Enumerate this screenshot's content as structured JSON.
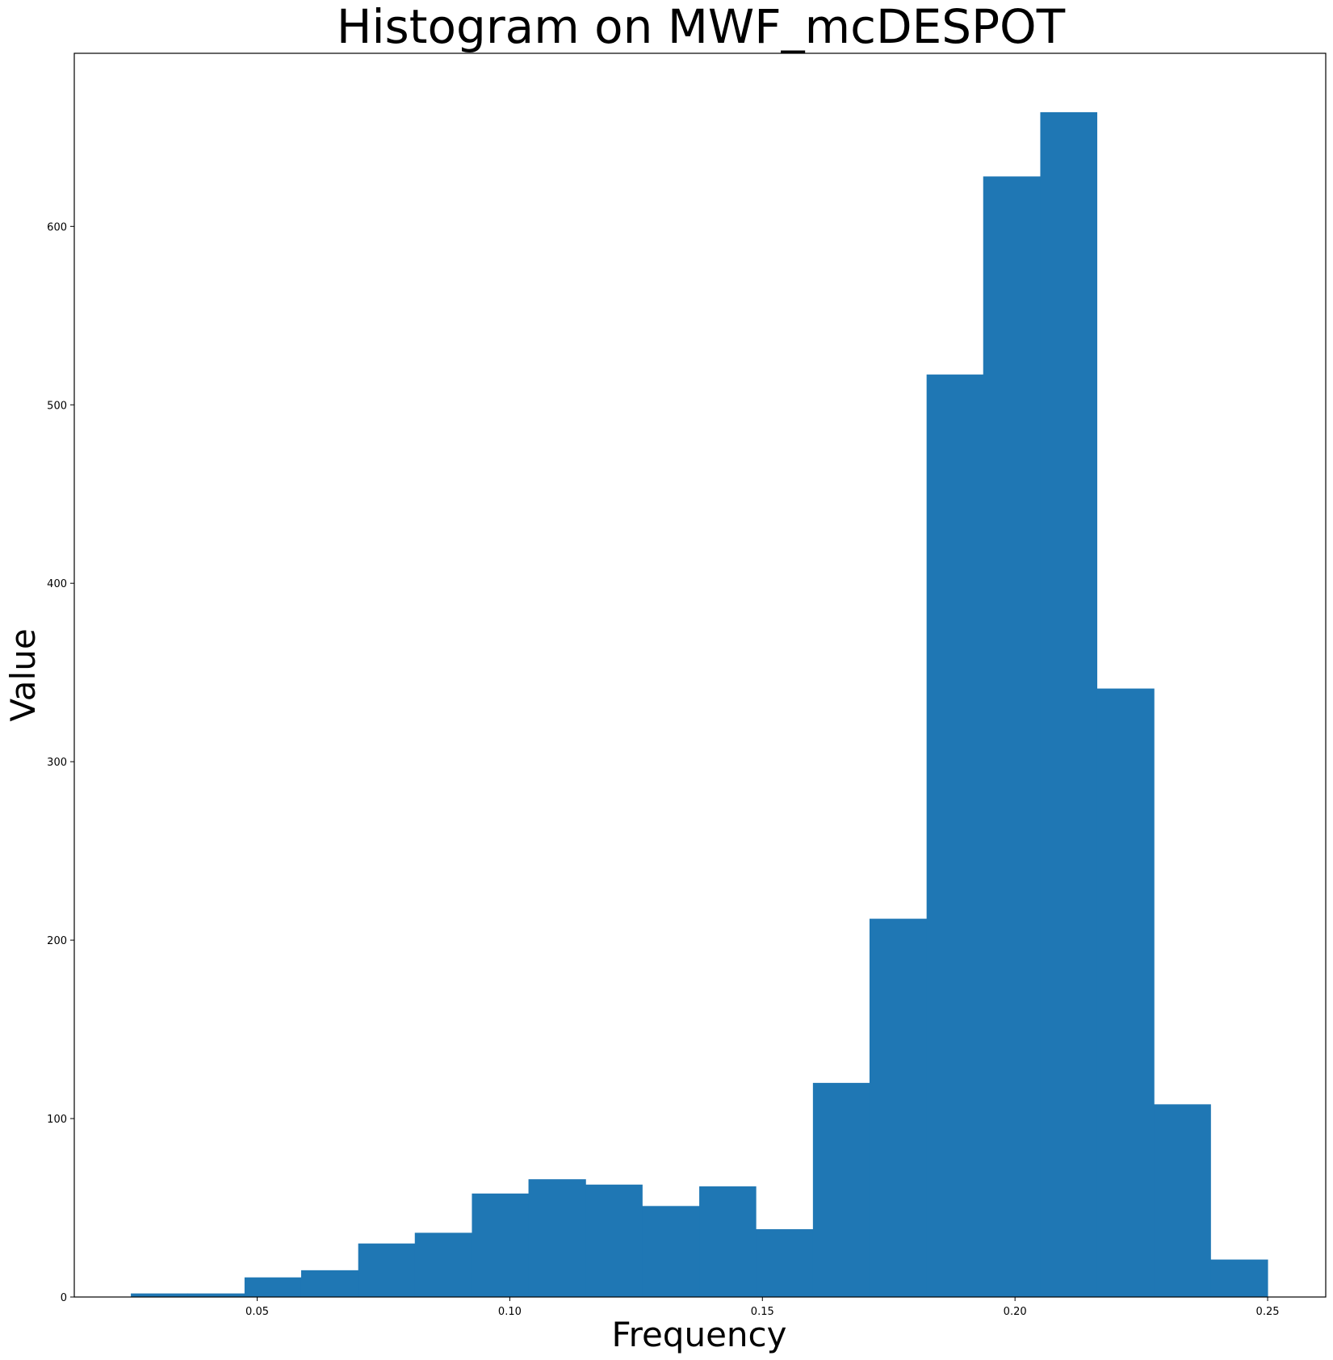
{
  "chart_data": {
    "type": "bar",
    "title": "Histogram on MWF_mcDESPOT",
    "xlabel": "Frequency",
    "ylabel": "Value",
    "xlim": [
      0.0138,
      0.2615
    ],
    "ylim": [
      0,
      697
    ],
    "xticks": [
      "0.05",
      "0.10",
      "0.15",
      "0.20",
      "0.25"
    ],
    "yticks": [
      "0",
      "100",
      "200",
      "300",
      "400",
      "500",
      "600"
    ],
    "grid": false,
    "bar_color": "#1f77b4",
    "bins": [
      {
        "x0": 0.025,
        "x1": 0.0362,
        "value": 2
      },
      {
        "x0": 0.0362,
        "x1": 0.0475,
        "value": 2
      },
      {
        "x0": 0.0475,
        "x1": 0.0587,
        "value": 11
      },
      {
        "x0": 0.0587,
        "x1": 0.07,
        "value": 15
      },
      {
        "x0": 0.07,
        "x1": 0.0812,
        "value": 30
      },
      {
        "x0": 0.0812,
        "x1": 0.0925,
        "value": 36
      },
      {
        "x0": 0.0925,
        "x1": 0.1037,
        "value": 58
      },
      {
        "x0": 0.1037,
        "x1": 0.115,
        "value": 66
      },
      {
        "x0": 0.115,
        "x1": 0.1262,
        "value": 63
      },
      {
        "x0": 0.1262,
        "x1": 0.1375,
        "value": 51
      },
      {
        "x0": 0.1375,
        "x1": 0.1487,
        "value": 62
      },
      {
        "x0": 0.1487,
        "x1": 0.16,
        "value": 38
      },
      {
        "x0": 0.16,
        "x1": 0.1712,
        "value": 120
      },
      {
        "x0": 0.1712,
        "x1": 0.1825,
        "value": 212
      },
      {
        "x0": 0.1825,
        "x1": 0.1937,
        "value": 517
      },
      {
        "x0": 0.1937,
        "x1": 0.205,
        "value": 628
      },
      {
        "x0": 0.205,
        "x1": 0.2162,
        "value": 664
      },
      {
        "x0": 0.2162,
        "x1": 0.2275,
        "value": 341
      },
      {
        "x0": 0.2275,
        "x1": 0.2387,
        "value": 108
      },
      {
        "x0": 0.2387,
        "x1": 0.25,
        "value": 21
      }
    ]
  }
}
